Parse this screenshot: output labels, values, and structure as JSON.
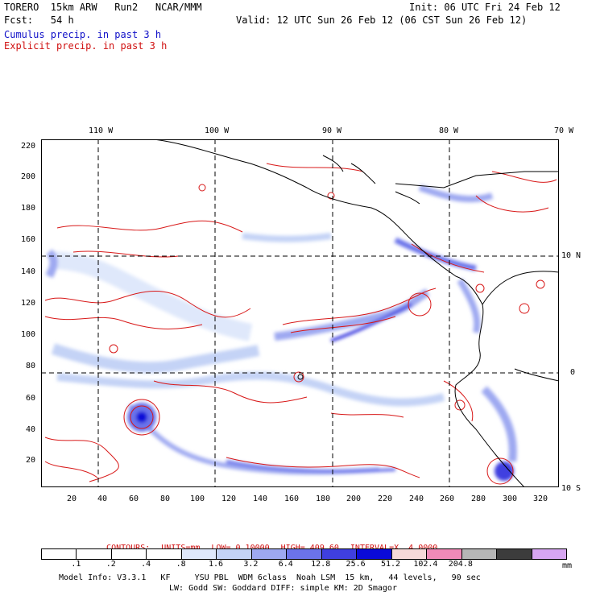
{
  "header": {
    "line1_left": "TORERO  15km ARW   Run2   NCAR/MMM",
    "line1_right": "Init: 06 UTC Fri 24 Feb 12",
    "line2_left": "Fcst:   54 h",
    "line2_right": "Valid: 12 UTC Sun 26 Feb 12 (06 CST Sun 26 Feb 12)",
    "field1": "Cumulus precip. in past 3 h",
    "field2": "Explicit precip. in past 3 h"
  },
  "map": {
    "top_lon_labels": [
      "110 W",
      "100 W",
      "90 W",
      "80 W",
      "70 W"
    ],
    "right_lat_labels": [
      "10 N",
      "0",
      "10 S"
    ],
    "left_y_ticks": [
      "220",
      "200",
      "180",
      "160",
      "140",
      "120",
      "100",
      "80",
      "60",
      "40",
      "20"
    ],
    "bottom_x_ticks": [
      "20",
      "40",
      "60",
      "80",
      "100",
      "120",
      "140",
      "160",
      "180",
      "200",
      "220",
      "240",
      "260",
      "280",
      "300",
      "320"
    ],
    "colors": {
      "land_outline": "#000000",
      "explicit_contour": "#d81818",
      "grid": "#000000"
    }
  },
  "contour_info": {
    "contours": "CONTOURS:",
    "units": "UNITS=mm",
    "low": "LOW= 0.10000",
    "high": "HIGH= 409.60",
    "interval": "INTERVAL=X  4.0000"
  },
  "colorbar": {
    "colors": [
      "#ffffff",
      "#ffffff",
      "#ffffff",
      "#ffffff",
      "#dfe8fb",
      "#c4d3f6",
      "#9ea9f1",
      "#6b73ea",
      "#3f3fe0",
      "#0a0ad8",
      "#f6d9d9",
      "#f08ab8",
      "#b6b6b6",
      "#3c3c3c",
      "#d7a6f2"
    ],
    "labels": [
      ".1",
      ".2",
      ".4",
      ".8",
      "1.6",
      "3.2",
      "6.4",
      "12.8",
      "25.6",
      "51.2",
      "102.4",
      "204.8"
    ],
    "unit": "mm"
  },
  "footer": {
    "line1": "Model Info: V3.3.1   KF     YSU PBL  WDM 6class  Noah LSM  15 km,   44 levels,   90 sec",
    "line2": "LW: Godd SW: Goddard DIFF: simple KM: 2D Smagor"
  }
}
